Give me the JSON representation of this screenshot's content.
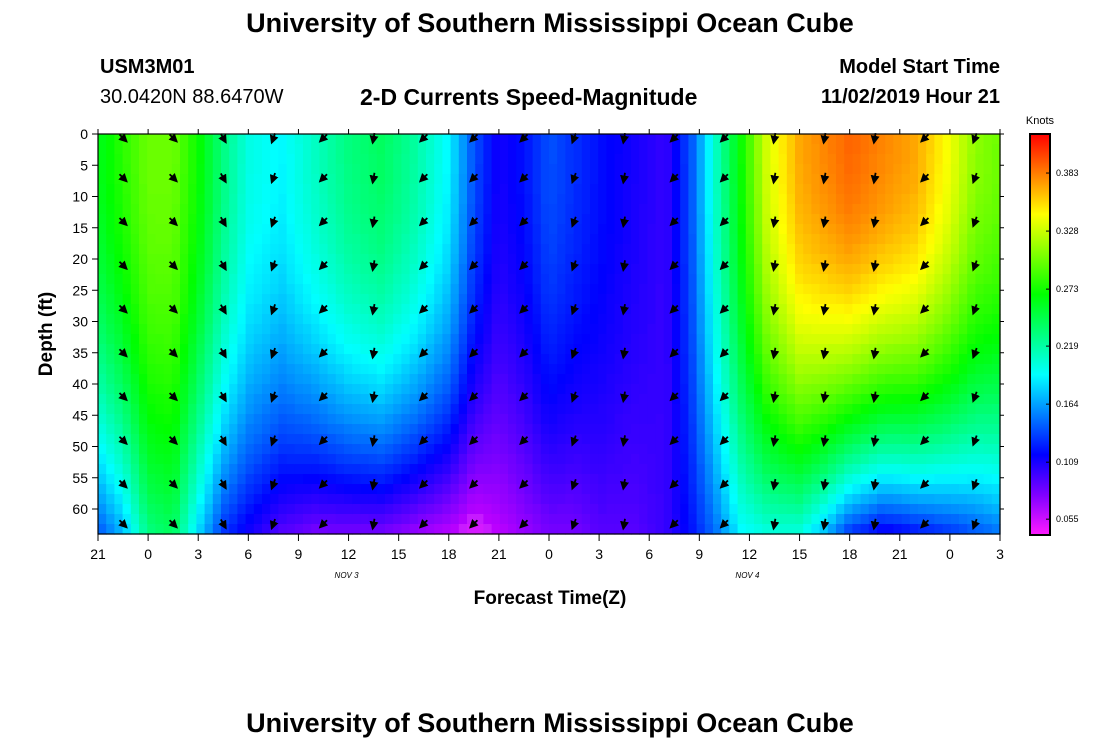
{
  "header": {
    "title": "University of Southern Mississippi Ocean Cube",
    "footer_title": "University of Southern Mississippi Ocean Cube",
    "station_id": "USM3M01",
    "station_location": "30.0420N 88.6470W",
    "subtitle": "2-D Currents Speed-Magnitude",
    "model_start_label": "Model Start Time",
    "model_start_value": "11/02/2019 Hour 21"
  },
  "chart_data": {
    "type": "heatmap",
    "title": "2-D Currents Speed-Magnitude",
    "xlabel": "Forecast Time(Z)",
    "ylabel": "Depth (ft)",
    "x_tick_labels": [
      "21",
      "0",
      "3",
      "6",
      "9",
      "12",
      "15",
      "18",
      "21",
      "0",
      "3",
      "6",
      "9",
      "12",
      "15",
      "18",
      "21",
      "0",
      "3"
    ],
    "x_hours": [
      0,
      3,
      6,
      9,
      12,
      15,
      18,
      21,
      24,
      27,
      30,
      33,
      36,
      39,
      42,
      45,
      48,
      51,
      54
    ],
    "date_markers": [
      {
        "label": "NOV 3",
        "hour": 15
      },
      {
        "label": "NOV 4",
        "hour": 39
      }
    ],
    "y_ticks": [
      0,
      5,
      10,
      15,
      20,
      25,
      30,
      35,
      40,
      45,
      50,
      55,
      60
    ],
    "ylim": [
      0,
      64
    ],
    "xlim": [
      0,
      54
    ],
    "colorbar": {
      "unit": "Knots",
      "tick_labels": [
        "0.383",
        "0.328",
        "0.273",
        "0.219",
        "0.164",
        "0.109",
        "0.055"
      ],
      "tick_values": [
        0.383,
        0.328,
        0.273,
        0.219,
        0.164,
        0.109,
        0.055
      ],
      "range": [
        0.04,
        0.42
      ]
    },
    "speed_profile": {
      "hours": [
        0,
        1.5,
        3,
        4.5,
        6,
        7.5,
        9,
        11,
        13,
        15,
        17,
        19,
        21,
        22.5,
        24,
        25.5,
        27,
        28.5,
        30,
        32,
        34,
        35.5,
        37,
        38.5,
        40,
        42,
        43.5,
        45,
        47,
        49,
        51,
        52.5,
        54
      ],
      "surface_knots": [
        0.26,
        0.28,
        0.3,
        0.3,
        0.27,
        0.23,
        0.2,
        0.19,
        0.21,
        0.23,
        0.24,
        0.22,
        0.19,
        0.14,
        0.11,
        0.12,
        0.14,
        0.13,
        0.12,
        0.11,
        0.1,
        0.14,
        0.21,
        0.27,
        0.33,
        0.37,
        0.38,
        0.39,
        0.38,
        0.37,
        0.34,
        0.31,
        0.3
      ],
      "bottom_knots": [
        0.14,
        0.17,
        0.23,
        0.24,
        0.18,
        0.13,
        0.11,
        0.09,
        0.08,
        0.08,
        0.08,
        0.07,
        0.06,
        0.05,
        0.06,
        0.07,
        0.08,
        0.08,
        0.09,
        0.09,
        0.1,
        0.12,
        0.15,
        0.19,
        0.2,
        0.2,
        0.17,
        0.13,
        0.11,
        0.12,
        0.13,
        0.14,
        0.15
      ]
    },
    "vector_depths_ft": [
      0,
      7,
      14,
      21,
      28,
      35,
      42,
      49,
      56,
      63
    ],
    "vector_hours": [
      1.5,
      4.5,
      7.5,
      10.5,
      13.5,
      16.5,
      19.5,
      22.5,
      25.5,
      28.5,
      31.5,
      34.5,
      37.5,
      40.5,
      43.5,
      46.5,
      49.5,
      52.5
    ],
    "vector_directions_deg": [
      135,
      135,
      150,
      200,
      225,
      190,
      225,
      225,
      225,
      200,
      190,
      225,
      225,
      190,
      190,
      190,
      225,
      200
    ]
  }
}
